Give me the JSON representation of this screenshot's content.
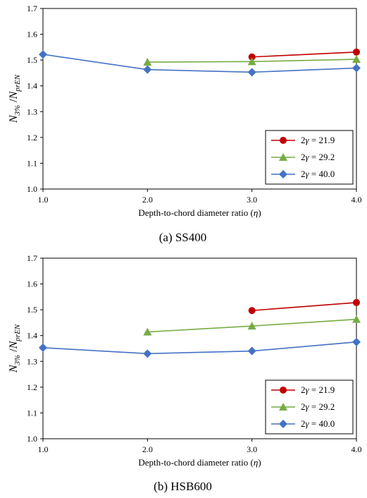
{
  "chart_data": [
    {
      "type": "line",
      "caption": "(a) SS400",
      "ylabel": "N3%/NprEN",
      "ylabel_parts": {
        "n1": "N",
        "s1": "3%",
        "slash": "/",
        "n2": "N",
        "s2": "prEN"
      },
      "xlabel": "Depth-to-chord diameter ratio (η)",
      "xlim": [
        1.0,
        4.0
      ],
      "ylim": [
        1.0,
        1.7
      ],
      "xticks": [
        "1.0",
        "2.0",
        "3.0",
        "4.0"
      ],
      "yticks": [
        "1.0",
        "1.1",
        "1.2",
        "1.3",
        "1.4",
        "1.5",
        "1.6",
        "1.7"
      ],
      "grid": false,
      "legend_position": "bottom-right",
      "series": [
        {
          "name": "2γ = 21.9",
          "color": "#C00000",
          "marker": "circle",
          "x": [
            3.0,
            4.0
          ],
          "y": [
            1.512,
            1.531
          ]
        },
        {
          "name": "2γ = 29.2",
          "color": "#77AC44",
          "marker": "triangle",
          "x": [
            2.0,
            3.0,
            4.0
          ],
          "y": [
            1.492,
            1.494,
            1.503
          ]
        },
        {
          "name": "2γ = 40.0",
          "color": "#4472C4",
          "marker": "diamond",
          "x": [
            1.0,
            2.0,
            3.0,
            4.0
          ],
          "y": [
            1.522,
            1.463,
            1.453,
            1.469
          ]
        }
      ]
    },
    {
      "type": "line",
      "caption": "(b) HSB600",
      "ylabel": "N3%/NprEN",
      "ylabel_parts": {
        "n1": "N",
        "s1": "3%",
        "slash": "/",
        "n2": "N",
        "s2": "prEN"
      },
      "xlabel": "Depth-to-chord diameter ratio (η)",
      "xlim": [
        1.0,
        4.0
      ],
      "ylim": [
        1.0,
        1.7
      ],
      "xticks": [
        "1.0",
        "2.0",
        "3.0",
        "4.0"
      ],
      "yticks": [
        "1.0",
        "1.1",
        "1.2",
        "1.3",
        "1.4",
        "1.5",
        "1.6",
        "1.7"
      ],
      "grid": false,
      "legend_position": "bottom-right",
      "series": [
        {
          "name": "2γ = 21.9",
          "color": "#C00000",
          "marker": "circle",
          "x": [
            3.0,
            4.0
          ],
          "y": [
            1.497,
            1.528
          ]
        },
        {
          "name": "2γ = 29.2",
          "color": "#77AC44",
          "marker": "triangle",
          "x": [
            2.0,
            3.0,
            4.0
          ],
          "y": [
            1.414,
            1.437,
            1.463
          ]
        },
        {
          "name": "2γ = 40.0",
          "color": "#4472C4",
          "marker": "diamond",
          "x": [
            1.0,
            2.0,
            3.0,
            4.0
          ],
          "y": [
            1.353,
            1.33,
            1.34,
            1.375
          ]
        }
      ]
    }
  ]
}
